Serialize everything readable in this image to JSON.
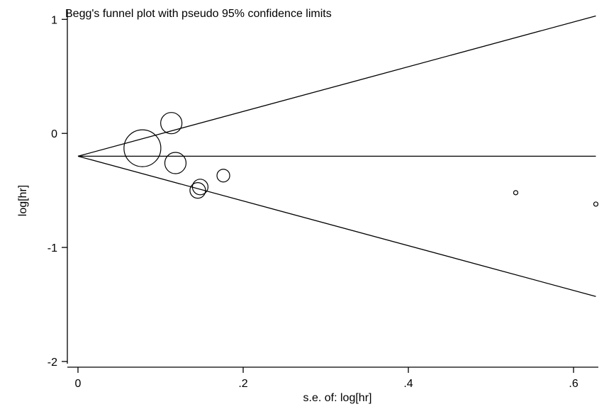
{
  "chart_data": {
    "type": "scatter",
    "title": "Begg's funnel plot with pseudo 95% confidence limits",
    "xlabel": "s.e. of: log[hr]",
    "ylabel": "log[hr]",
    "xlim": [
      0,
      0.63
    ],
    "ylim": [
      -2.05,
      1.12
    ],
    "x_ticks": [
      0,
      0.2,
      0.4,
      0.6
    ],
    "x_tick_labels": [
      "0",
      ".2",
      ".4",
      ".6"
    ],
    "y_ticks": [
      1,
      0,
      -1,
      -2
    ],
    "y_tick_labels": [
      "1",
      "0",
      "-1",
      "-2"
    ],
    "grid": false,
    "legend": "none",
    "pooled_estimate": -0.2,
    "funnel_limits": {
      "se_max": 0.627,
      "upper_at_max": 1.03,
      "lower_at_max": -1.43
    },
    "points": [
      {
        "x": 0.078,
        "y": -0.13,
        "weight": 26
      },
      {
        "x": 0.113,
        "y": 0.09,
        "weight": 15
      },
      {
        "x": 0.118,
        "y": -0.26,
        "weight": 15
      },
      {
        "x": 0.148,
        "y": -0.47,
        "weight": 11
      },
      {
        "x": 0.145,
        "y": -0.5,
        "weight": 11
      },
      {
        "x": 0.176,
        "y": -0.37,
        "weight": 9
      },
      {
        "x": 0.53,
        "y": -0.52,
        "weight": 3
      },
      {
        "x": 0.627,
        "y": -0.62,
        "weight": 3
      }
    ]
  }
}
